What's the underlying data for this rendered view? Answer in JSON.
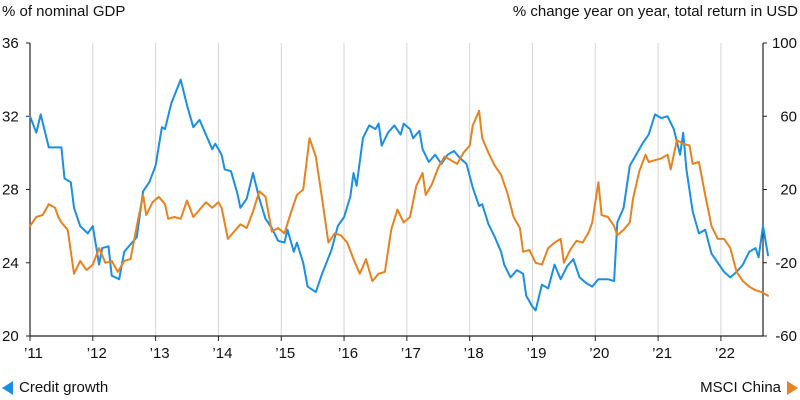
{
  "chart_data": {
    "type": "line",
    "ylabel_left": "% of nominal GDP",
    "ylabel_right": "% change year on year, total return in USD",
    "ylim_left": [
      20,
      36
    ],
    "ylim_right": [
      -60,
      100
    ],
    "yticks_left": [
      "36",
      "32",
      "28",
      "24",
      "20"
    ],
    "yticks_right": [
      "100",
      "60",
      "20",
      "-20",
      "-60"
    ],
    "xlim": [
      2011,
      2022.67
    ],
    "xticks": [
      {
        "x": 2011,
        "label": "’11"
      },
      {
        "x": 2012,
        "label": "’12"
      },
      {
        "x": 2013,
        "label": "’13"
      },
      {
        "x": 2014,
        "label": "’14"
      },
      {
        "x": 2015,
        "label": "’15"
      },
      {
        "x": 2016,
        "label": "’16"
      },
      {
        "x": 2017,
        "label": "’17"
      },
      {
        "x": 2018,
        "label": "’18"
      },
      {
        "x": 2019,
        "label": "’19"
      },
      {
        "x": 2020,
        "label": "’20"
      },
      {
        "x": 2021,
        "label": "’21"
      },
      {
        "x": 2022,
        "label": "’22"
      }
    ],
    "grid": "vertical",
    "series": [
      {
        "name": "Credit growth",
        "axis": "left",
        "color": "#1a8fe3",
        "points": [
          [
            2011.0,
            32.0
          ],
          [
            2011.1,
            31.1
          ],
          [
            2011.17,
            32.1
          ],
          [
            2011.3,
            30.3
          ],
          [
            2011.5,
            30.3
          ],
          [
            2011.55,
            28.6
          ],
          [
            2011.65,
            28.4
          ],
          [
            2011.7,
            27.0
          ],
          [
            2011.8,
            26.0
          ],
          [
            2011.92,
            25.6
          ],
          [
            2012.0,
            26.0
          ],
          [
            2012.1,
            23.9
          ],
          [
            2012.15,
            24.8
          ],
          [
            2012.25,
            24.9
          ],
          [
            2012.3,
            23.3
          ],
          [
            2012.42,
            23.1
          ],
          [
            2012.5,
            24.6
          ],
          [
            2012.6,
            25.0
          ],
          [
            2012.7,
            25.4
          ],
          [
            2012.8,
            27.9
          ],
          [
            2012.9,
            28.4
          ],
          [
            2013.0,
            29.3
          ],
          [
            2013.1,
            31.4
          ],
          [
            2013.15,
            31.3
          ],
          [
            2013.25,
            32.7
          ],
          [
            2013.4,
            34.0
          ],
          [
            2013.5,
            32.6
          ],
          [
            2013.6,
            31.4
          ],
          [
            2013.7,
            31.8
          ],
          [
            2013.8,
            31.0
          ],
          [
            2013.9,
            30.2
          ],
          [
            2013.95,
            30.5
          ],
          [
            2014.05,
            29.9
          ],
          [
            2014.1,
            29.1
          ],
          [
            2014.2,
            29.0
          ],
          [
            2014.3,
            27.8
          ],
          [
            2014.35,
            27.0
          ],
          [
            2014.45,
            27.5
          ],
          [
            2014.55,
            28.9
          ],
          [
            2014.65,
            27.5
          ],
          [
            2014.75,
            26.4
          ],
          [
            2014.85,
            25.9
          ],
          [
            2014.95,
            25.2
          ],
          [
            2015.05,
            25.1
          ],
          [
            2015.1,
            25.8
          ],
          [
            2015.2,
            24.6
          ],
          [
            2015.25,
            25.1
          ],
          [
            2015.35,
            24.0
          ],
          [
            2015.42,
            22.7
          ],
          [
            2015.55,
            22.4
          ],
          [
            2015.65,
            23.4
          ],
          [
            2015.8,
            24.7
          ],
          [
            2015.9,
            26.0
          ],
          [
            2016.0,
            26.5
          ],
          [
            2016.1,
            27.6
          ],
          [
            2016.15,
            28.9
          ],
          [
            2016.2,
            28.2
          ],
          [
            2016.3,
            30.8
          ],
          [
            2016.4,
            31.5
          ],
          [
            2016.5,
            31.3
          ],
          [
            2016.55,
            31.6
          ],
          [
            2016.6,
            30.4
          ],
          [
            2016.7,
            31.1
          ],
          [
            2016.8,
            31.5
          ],
          [
            2016.9,
            31.0
          ],
          [
            2016.95,
            31.6
          ],
          [
            2017.05,
            31.3
          ],
          [
            2017.1,
            30.8
          ],
          [
            2017.2,
            31.2
          ],
          [
            2017.25,
            30.2
          ],
          [
            2017.35,
            29.5
          ],
          [
            2017.45,
            29.9
          ],
          [
            2017.55,
            29.4
          ],
          [
            2017.65,
            29.9
          ],
          [
            2017.75,
            30.1
          ],
          [
            2017.85,
            29.7
          ],
          [
            2017.95,
            29.4
          ],
          [
            2018.05,
            28.1
          ],
          [
            2018.15,
            27.1
          ],
          [
            2018.2,
            27.2
          ],
          [
            2018.3,
            26.1
          ],
          [
            2018.4,
            25.4
          ],
          [
            2018.5,
            24.6
          ],
          [
            2018.55,
            23.9
          ],
          [
            2018.65,
            23.2
          ],
          [
            2018.75,
            23.6
          ],
          [
            2018.85,
            23.4
          ],
          [
            2018.9,
            22.2
          ],
          [
            2019.0,
            21.6
          ],
          [
            2019.05,
            21.4
          ],
          [
            2019.15,
            22.8
          ],
          [
            2019.25,
            22.6
          ],
          [
            2019.35,
            23.9
          ],
          [
            2019.45,
            23.1
          ],
          [
            2019.55,
            23.8
          ],
          [
            2019.65,
            24.2
          ],
          [
            2019.75,
            23.2
          ],
          [
            2019.85,
            22.9
          ],
          [
            2019.95,
            22.7
          ],
          [
            2020.05,
            23.1
          ],
          [
            2020.2,
            23.1
          ],
          [
            2020.3,
            23.0
          ],
          [
            2020.35,
            26.2
          ],
          [
            2020.45,
            27.0
          ],
          [
            2020.55,
            29.3
          ],
          [
            2020.65,
            29.9
          ],
          [
            2020.75,
            30.5
          ],
          [
            2020.85,
            31.0
          ],
          [
            2020.95,
            32.1
          ],
          [
            2021.05,
            31.9
          ],
          [
            2021.15,
            32.0
          ],
          [
            2021.25,
            31.3
          ],
          [
            2021.35,
            29.9
          ],
          [
            2021.4,
            31.1
          ],
          [
            2021.45,
            29.1
          ],
          [
            2021.55,
            26.8
          ],
          [
            2021.65,
            25.6
          ],
          [
            2021.75,
            25.8
          ],
          [
            2021.85,
            24.5
          ],
          [
            2021.95,
            24.0
          ],
          [
            2022.05,
            23.5
          ],
          [
            2022.15,
            23.2
          ],
          [
            2022.25,
            23.5
          ],
          [
            2022.35,
            23.9
          ],
          [
            2022.45,
            24.6
          ],
          [
            2022.55,
            24.8
          ],
          [
            2022.6,
            24.3
          ],
          [
            2022.67,
            26.0
          ],
          [
            2022.75,
            24.4
          ]
        ]
      },
      {
        "name": "MSCI China",
        "axis": "right",
        "color": "#e8821e",
        "points": [
          [
            2011.0,
            0.0
          ],
          [
            2011.1,
            5.0
          ],
          [
            2011.2,
            6.0
          ],
          [
            2011.3,
            12.0
          ],
          [
            2011.4,
            10.0
          ],
          [
            2011.45,
            5.0
          ],
          [
            2011.5,
            2.0
          ],
          [
            2011.6,
            -2.0
          ],
          [
            2011.7,
            -26.0
          ],
          [
            2011.8,
            -19.0
          ],
          [
            2011.9,
            -24.0
          ],
          [
            2012.0,
            -21.0
          ],
          [
            2012.1,
            -12.0
          ],
          [
            2012.2,
            -20.0
          ],
          [
            2012.3,
            -19.0
          ],
          [
            2012.4,
            -25.0
          ],
          [
            2012.5,
            -19.0
          ],
          [
            2012.6,
            -18.0
          ],
          [
            2012.7,
            0.0
          ],
          [
            2012.8,
            17.0
          ],
          [
            2012.85,
            6.0
          ],
          [
            2012.95,
            13.0
          ],
          [
            2013.05,
            16.0
          ],
          [
            2013.15,
            12.0
          ],
          [
            2013.2,
            4.0
          ],
          [
            2013.3,
            5.0
          ],
          [
            2013.4,
            4.0
          ],
          [
            2013.5,
            14.0
          ],
          [
            2013.6,
            5.0
          ],
          [
            2013.7,
            9.0
          ],
          [
            2013.8,
            13.0
          ],
          [
            2013.9,
            10.0
          ],
          [
            2014.0,
            13.0
          ],
          [
            2014.05,
            10.0
          ],
          [
            2014.15,
            -7.0
          ],
          [
            2014.25,
            -3.0
          ],
          [
            2014.35,
            1.0
          ],
          [
            2014.45,
            -1.0
          ],
          [
            2014.55,
            8.0
          ],
          [
            2014.65,
            19.0
          ],
          [
            2014.75,
            16.0
          ],
          [
            2014.85,
            -3.0
          ],
          [
            2014.95,
            -1.0
          ],
          [
            2015.05,
            -4.0
          ],
          [
            2015.15,
            7.0
          ],
          [
            2015.25,
            17.0
          ],
          [
            2015.35,
            20.0
          ],
          [
            2015.45,
            48.0
          ],
          [
            2015.55,
            38.0
          ],
          [
            2015.65,
            15.0
          ],
          [
            2015.75,
            -9.0
          ],
          [
            2015.85,
            -4.0
          ],
          [
            2015.95,
            -5.0
          ],
          [
            2016.05,
            -9.0
          ],
          [
            2016.15,
            -18.0
          ],
          [
            2016.25,
            -26.0
          ],
          [
            2016.35,
            -18.0
          ],
          [
            2016.45,
            -30.0
          ],
          [
            2016.55,
            -26.0
          ],
          [
            2016.65,
            -25.0
          ],
          [
            2016.75,
            -2.0
          ],
          [
            2016.85,
            9.0
          ],
          [
            2016.95,
            2.0
          ],
          [
            2017.05,
            5.0
          ],
          [
            2017.15,
            22.0
          ],
          [
            2017.25,
            29.0
          ],
          [
            2017.3,
            17.0
          ],
          [
            2017.4,
            23.0
          ],
          [
            2017.5,
            32.0
          ],
          [
            2017.6,
            38.0
          ],
          [
            2017.7,
            36.0
          ],
          [
            2017.8,
            34.0
          ],
          [
            2017.9,
            40.0
          ],
          [
            2018.0,
            44.0
          ],
          [
            2018.05,
            55.0
          ],
          [
            2018.15,
            63.0
          ],
          [
            2018.2,
            48.0
          ],
          [
            2018.3,
            40.0
          ],
          [
            2018.4,
            33.0
          ],
          [
            2018.5,
            28.0
          ],
          [
            2018.6,
            18.0
          ],
          [
            2018.7,
            5.0
          ],
          [
            2018.8,
            -1.0
          ],
          [
            2018.85,
            -14.0
          ],
          [
            2018.95,
            -13.0
          ],
          [
            2019.05,
            -20.0
          ],
          [
            2019.15,
            -21.0
          ],
          [
            2019.25,
            -12.0
          ],
          [
            2019.35,
            -9.0
          ],
          [
            2019.45,
            -7.0
          ],
          [
            2019.5,
            -20.0
          ],
          [
            2019.6,
            -13.0
          ],
          [
            2019.7,
            -8.0
          ],
          [
            2019.8,
            -9.0
          ],
          [
            2019.9,
            -3.0
          ],
          [
            2019.95,
            2.0
          ],
          [
            2020.05,
            24.0
          ],
          [
            2020.1,
            6.0
          ],
          [
            2020.2,
            5.0
          ],
          [
            2020.3,
            0.0
          ],
          [
            2020.35,
            -5.0
          ],
          [
            2020.45,
            -2.0
          ],
          [
            2020.55,
            2.0
          ],
          [
            2020.6,
            15.0
          ],
          [
            2020.7,
            30.0
          ],
          [
            2020.8,
            39.0
          ],
          [
            2020.85,
            35.0
          ],
          [
            2020.95,
            36.0
          ],
          [
            2021.05,
            37.0
          ],
          [
            2021.15,
            39.0
          ],
          [
            2021.2,
            31.0
          ],
          [
            2021.3,
            47.0
          ],
          [
            2021.4,
            45.0
          ],
          [
            2021.5,
            44.0
          ],
          [
            2021.55,
            34.0
          ],
          [
            2021.65,
            35.0
          ],
          [
            2021.75,
            17.0
          ],
          [
            2021.85,
            0.0
          ],
          [
            2021.95,
            -7.0
          ],
          [
            2022.05,
            -7.0
          ],
          [
            2022.15,
            -12.0
          ],
          [
            2022.25,
            -25.0
          ],
          [
            2022.35,
            -30.0
          ],
          [
            2022.45,
            -33.0
          ],
          [
            2022.55,
            -35.0
          ],
          [
            2022.65,
            -36.0
          ],
          [
            2022.75,
            -38.0
          ]
        ]
      }
    ]
  },
  "legend": {
    "left": {
      "label": "Credit growth",
      "icon": "triangle-left-icon"
    },
    "right": {
      "label": "MSCI China",
      "icon": "triangle-right-icon"
    }
  }
}
